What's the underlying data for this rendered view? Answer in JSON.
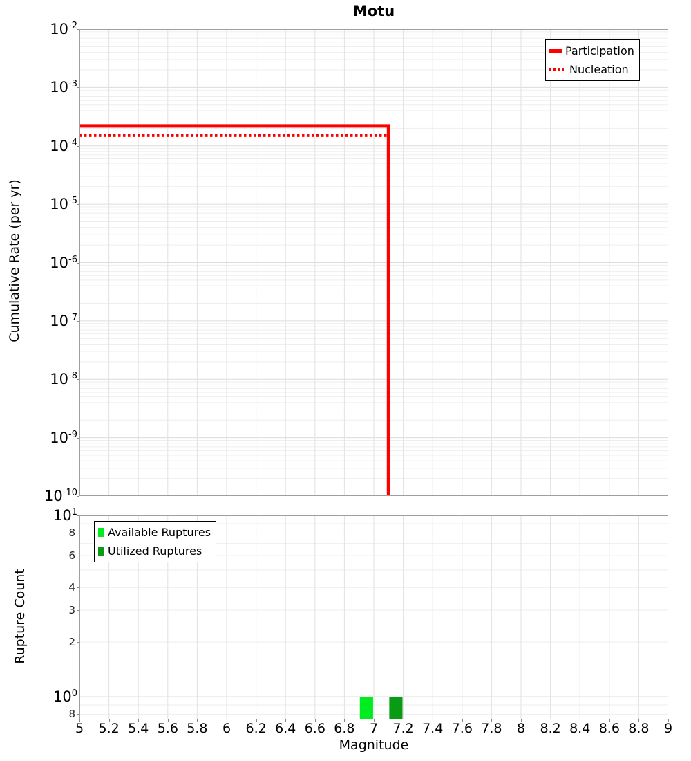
{
  "title": "Motu",
  "axes": {
    "x_label": "Magnitude",
    "top_y_label": "Cumulative Rate (per yr)",
    "bottom_y_label": "Rupture Count"
  },
  "colors": {
    "participation": "#ff0000",
    "nucleation": "#ff0000",
    "available": "#00ec20",
    "utilized": "#0a9b14",
    "grid_major": "#dcdcdc",
    "grid_minor": "#eeeeee",
    "grid_vertical": "#e2e2e2",
    "axis_border": "#9e9e9e"
  },
  "x_ticks": [
    {
      "value": 5,
      "label": "5"
    },
    {
      "value": 5.2,
      "label": "5.2"
    },
    {
      "value": 5.4,
      "label": "5.4"
    },
    {
      "value": 5.6,
      "label": "5.6"
    },
    {
      "value": 5.8,
      "label": "5.8"
    },
    {
      "value": 6,
      "label": "6"
    },
    {
      "value": 6.2,
      "label": "6.2"
    },
    {
      "value": 6.4,
      "label": "6.4"
    },
    {
      "value": 6.6,
      "label": "6.6"
    },
    {
      "value": 6.8,
      "label": "6.8"
    },
    {
      "value": 7,
      "label": "7"
    },
    {
      "value": 7.2,
      "label": "7.2"
    },
    {
      "value": 7.4,
      "label": "7.4"
    },
    {
      "value": 7.6,
      "label": "7.6"
    },
    {
      "value": 7.8,
      "label": "7.8"
    },
    {
      "value": 8,
      "label": "8"
    },
    {
      "value": 8.2,
      "label": "8.2"
    },
    {
      "value": 8.4,
      "label": "8.4"
    },
    {
      "value": 8.6,
      "label": "8.6"
    },
    {
      "value": 8.8,
      "label": "8.8"
    },
    {
      "value": 9,
      "label": "9"
    }
  ],
  "top_legend": {
    "items": [
      {
        "label": "Participation",
        "style": "solid-line",
        "color": "#ff0000"
      },
      {
        "label": "Nucleation",
        "style": "dotted-line",
        "color": "#ff0000"
      }
    ]
  },
  "bottom_legend": {
    "items": [
      {
        "label": "Available Ruptures",
        "color": "#00ec20"
      },
      {
        "label": "Utilized Ruptures",
        "color": "#0a9b14"
      }
    ]
  },
  "chart_data": [
    {
      "type": "line",
      "panel": "top",
      "title": "Motu",
      "xlabel": "Magnitude",
      "ylabel": "Cumulative Rate (per yr)",
      "xlim": [
        5,
        9
      ],
      "ylim": [
        1e-10,
        0.01
      ],
      "y_scale": "log",
      "grid": true,
      "legend_position": "top-right",
      "y_tick_exponents": [
        -2,
        -3,
        -4,
        -5,
        -6,
        -7,
        -8,
        -9,
        -10
      ],
      "series": [
        {
          "name": "Participation",
          "color": "#ff0000",
          "line_style": "solid",
          "line_width": 5,
          "points": [
            [
              5.0,
              0.00022
            ],
            [
              7.1,
              0.00022
            ],
            [
              7.1,
              1e-10
            ]
          ]
        },
        {
          "name": "Nucleation",
          "color": "#ff0000",
          "line_style": "dotted",
          "line_width": 4,
          "points": [
            [
              5.0,
              0.00015
            ],
            [
              7.1,
              0.00015
            ],
            [
              7.1,
              1e-10
            ]
          ]
        }
      ]
    },
    {
      "type": "bar",
      "panel": "bottom",
      "xlabel": "Magnitude",
      "ylabel": "Rupture Count",
      "xlim": [
        5,
        9
      ],
      "ylim": [
        0.75,
        10
      ],
      "y_scale": "log",
      "grid": true,
      "legend_position": "top-left",
      "y_major_ticks": [
        {
          "mantissa": "10",
          "exponent": "1",
          "value": 10
        },
        {
          "mantissa": "10",
          "exponent": "0",
          "value": 1
        }
      ],
      "y_minor_tick_labels": [
        {
          "value": 8,
          "label": "8"
        },
        {
          "value": 6,
          "label": "6"
        },
        {
          "value": 4,
          "label": "4"
        },
        {
          "value": 3,
          "label": "3"
        },
        {
          "value": 2,
          "label": "2"
        },
        {
          "value": 0.8,
          "label": "8"
        }
      ],
      "series": [
        {
          "name": "Available Ruptures",
          "color": "#00ec20",
          "bars": [
            {
              "x": 6.95,
              "width": 0.09,
              "count": 1
            }
          ]
        },
        {
          "name": "Utilized Ruptures",
          "color": "#0a9b14",
          "bars": [
            {
              "x": 7.15,
              "width": 0.09,
              "count": 1
            }
          ]
        }
      ]
    }
  ]
}
